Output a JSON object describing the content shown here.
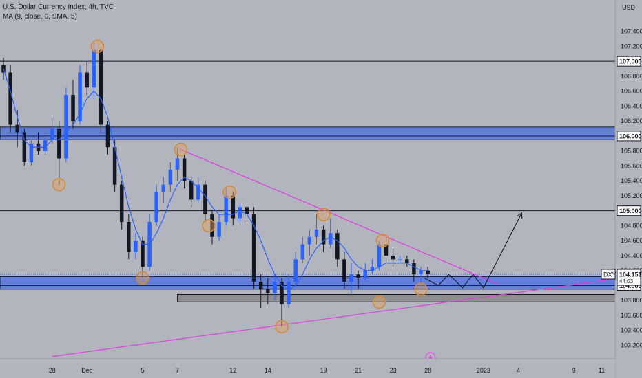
{
  "header": {
    "title": "U.S. Dollar Currency Index, 4h, TVC",
    "indicator": "MA (9, close, 0, SMA, 5)"
  },
  "chart_data": {
    "type": "candlestick",
    "currency": "USD",
    "symbol": "DXY",
    "y_ticks": [
      107.4,
      107.2,
      106.8,
      106.6,
      106.4,
      106.2,
      105.8,
      105.6,
      105.4,
      105.2,
      104.8,
      104.6,
      104.4,
      104.2,
      103.8,
      103.6,
      103.4,
      103.2
    ],
    "ylim": [
      103.02,
      107.82
    ],
    "x_ticks": [
      "28",
      "Dec",
      "5",
      "7",
      "12",
      "14",
      "19",
      "21",
      "23",
      "28",
      "2023",
      "4",
      "9",
      "11"
    ],
    "x_tick_indices": [
      7,
      12,
      20,
      25,
      33,
      38,
      46,
      51,
      56,
      61,
      69,
      74,
      82,
      86
    ],
    "price_labels": [
      {
        "value": 107.0,
        "label": "107.000"
      },
      {
        "value": 106.0,
        "label": "106.000"
      },
      {
        "value": 105.0,
        "label": "105.000"
      },
      {
        "value": 104.0,
        "label": "104.000"
      }
    ],
    "last_price": {
      "value": 104.151,
      "label": "104.151",
      "countdown": "44:03",
      "symbol": "DXY"
    },
    "horizontal_levels": [
      107.0,
      106.0,
      105.0,
      104.0
    ],
    "zones": [
      {
        "y1": 106.12,
        "y2": 105.95,
        "color": "#4a6ee0"
      },
      {
        "y1": 104.12,
        "y2": 103.95,
        "color": "#4a6ee0"
      },
      {
        "y1": 103.88,
        "y2": 103.78,
        "color": "#808080"
      }
    ],
    "trendlines": [
      {
        "points": [
          [
            25.5,
            105.82
          ],
          [
            71,
            104.02
          ]
        ],
        "color": "#e040e0"
      },
      {
        "points": [
          [
            7,
            103.05
          ],
          [
            89,
            104.1
          ]
        ],
        "color": "#e040e0"
      }
    ],
    "projection": {
      "points": [
        [
          60.5,
          104.1
        ],
        [
          62.5,
          104.0
        ],
        [
          64,
          104.15
        ],
        [
          66,
          103.97
        ],
        [
          67.5,
          104.15
        ],
        [
          69,
          103.97
        ],
        [
          74.5,
          104.97
        ]
      ],
      "color": "#131722"
    },
    "circle_markers": [
      [
        13.5,
        107.2
      ],
      [
        8,
        105.35
      ],
      [
        25.5,
        105.82
      ],
      [
        20,
        104.1
      ],
      [
        29.5,
        104.8
      ],
      [
        32.5,
        105.25
      ],
      [
        46,
        104.95
      ],
      [
        40,
        103.45
      ],
      [
        54.5,
        104.6
      ],
      [
        54,
        103.78
      ],
      [
        60,
        103.95
      ]
    ],
    "candles": [
      [
        106.95,
        107.05,
        106.75,
        106.85
      ],
      [
        106.85,
        106.95,
        106.05,
        106.15
      ],
      [
        106.15,
        106.35,
        105.85,
        106.05
      ],
      [
        106.05,
        106.1,
        105.6,
        105.65
      ],
      [
        105.65,
        105.95,
        105.6,
        105.9
      ],
      [
        105.9,
        106.05,
        105.75,
        105.8
      ],
      [
        105.8,
        106.0,
        105.75,
        105.95
      ],
      [
        105.95,
        106.25,
        105.9,
        106.1
      ],
      [
        106.1,
        106.2,
        105.35,
        105.7
      ],
      [
        105.7,
        106.65,
        105.65,
        106.55
      ],
      [
        106.55,
        106.75,
        106.1,
        106.2
      ],
      [
        106.2,
        106.95,
        106.15,
        106.85
      ],
      [
        106.85,
        107.0,
        106.55,
        106.65
      ],
      [
        106.65,
        107.25,
        106.5,
        107.15
      ],
      [
        107.15,
        107.2,
        106.05,
        106.15
      ],
      [
        106.15,
        106.2,
        105.75,
        105.85
      ],
      [
        105.85,
        105.95,
        105.25,
        105.35
      ],
      [
        105.35,
        105.4,
        104.75,
        104.85
      ],
      [
        104.85,
        104.95,
        104.35,
        104.45
      ],
      [
        104.45,
        104.7,
        104.35,
        104.6
      ],
      [
        104.6,
        104.65,
        104.1,
        104.25
      ],
      [
        104.25,
        104.95,
        104.2,
        104.85
      ],
      [
        104.85,
        105.35,
        104.8,
        105.25
      ],
      [
        105.25,
        105.45,
        105.1,
        105.35
      ],
      [
        105.35,
        105.65,
        105.25,
        105.55
      ],
      [
        105.55,
        105.85,
        105.4,
        105.7
      ],
      [
        105.7,
        105.75,
        105.3,
        105.4
      ],
      [
        105.4,
        105.45,
        105.05,
        105.15
      ],
      [
        105.15,
        105.45,
        105.1,
        105.35
      ],
      [
        105.35,
        105.4,
        104.85,
        104.95
      ],
      [
        104.95,
        105.0,
        104.55,
        104.65
      ],
      [
        104.65,
        104.95,
        104.6,
        104.85
      ],
      [
        104.85,
        105.3,
        104.8,
        105.2
      ],
      [
        105.2,
        105.25,
        104.8,
        104.9
      ],
      [
        104.9,
        105.1,
        104.85,
        105.05
      ],
      [
        105.05,
        105.1,
        104.85,
        104.95
      ],
      [
        104.95,
        105.05,
        103.95,
        104.05
      ],
      [
        104.05,
        104.15,
        103.7,
        103.95
      ],
      [
        103.95,
        104.1,
        103.75,
        103.9
      ],
      [
        103.9,
        104.15,
        103.8,
        104.05
      ],
      [
        104.05,
        104.1,
        103.45,
        103.75
      ],
      [
        103.75,
        104.15,
        103.7,
        104.05
      ],
      [
        104.05,
        104.45,
        104.0,
        104.35
      ],
      [
        104.35,
        104.65,
        104.3,
        104.55
      ],
      [
        104.55,
        104.75,
        104.4,
        104.65
      ],
      [
        104.65,
        104.95,
        104.55,
        104.75
      ],
      [
        104.75,
        104.8,
        104.45,
        104.55
      ],
      [
        104.55,
        104.9,
        104.5,
        104.7
      ],
      [
        104.7,
        104.75,
        104.25,
        104.35
      ],
      [
        104.35,
        104.45,
        103.95,
        104.05
      ],
      [
        104.05,
        104.3,
        103.9,
        104.15
      ],
      [
        104.15,
        104.2,
        103.95,
        104.1
      ],
      [
        104.1,
        104.3,
        104.05,
        104.2
      ],
      [
        104.2,
        104.35,
        104.15,
        104.25
      ],
      [
        104.25,
        104.6,
        104.2,
        104.55
      ],
      [
        104.55,
        104.65,
        104.3,
        104.4
      ],
      [
        104.4,
        104.5,
        104.25,
        104.35
      ],
      [
        104.35,
        104.4,
        104.3,
        104.35
      ],
      [
        104.35,
        104.4,
        104.25,
        104.3
      ],
      [
        104.3,
        104.35,
        104.05,
        104.15
      ],
      [
        104.15,
        104.25,
        103.98,
        104.2
      ],
      [
        104.2,
        104.25,
        104.1,
        104.15
      ]
    ],
    "ma": [
      106.9,
      106.6,
      106.25,
      105.95,
      105.85,
      105.85,
      105.85,
      105.95,
      105.95,
      106.05,
      106.15,
      106.3,
      106.5,
      106.6,
      106.5,
      106.25,
      105.85,
      105.45,
      105.05,
      104.75,
      104.55,
      104.55,
      104.7,
      104.9,
      105.15,
      105.35,
      105.45,
      105.4,
      105.3,
      105.2,
      105.05,
      104.95,
      104.95,
      104.95,
      105.0,
      104.95,
      104.8,
      104.6,
      104.35,
      104.15,
      104.0,
      103.95,
      104.0,
      104.15,
      104.35,
      104.5,
      104.6,
      104.65,
      104.6,
      104.5,
      104.35,
      104.25,
      104.2,
      104.2,
      104.25,
      104.3,
      104.3,
      104.3,
      104.3,
      104.25,
      104.2,
      104.2
    ],
    "colors": {
      "up": "#2962ff",
      "down": "#131722",
      "ma": "#2962ff",
      "zone_blue": "#4a6ee0",
      "zone_gray": "#808080",
      "trendline": "#e040e0",
      "background": "#b2b5be"
    }
  }
}
